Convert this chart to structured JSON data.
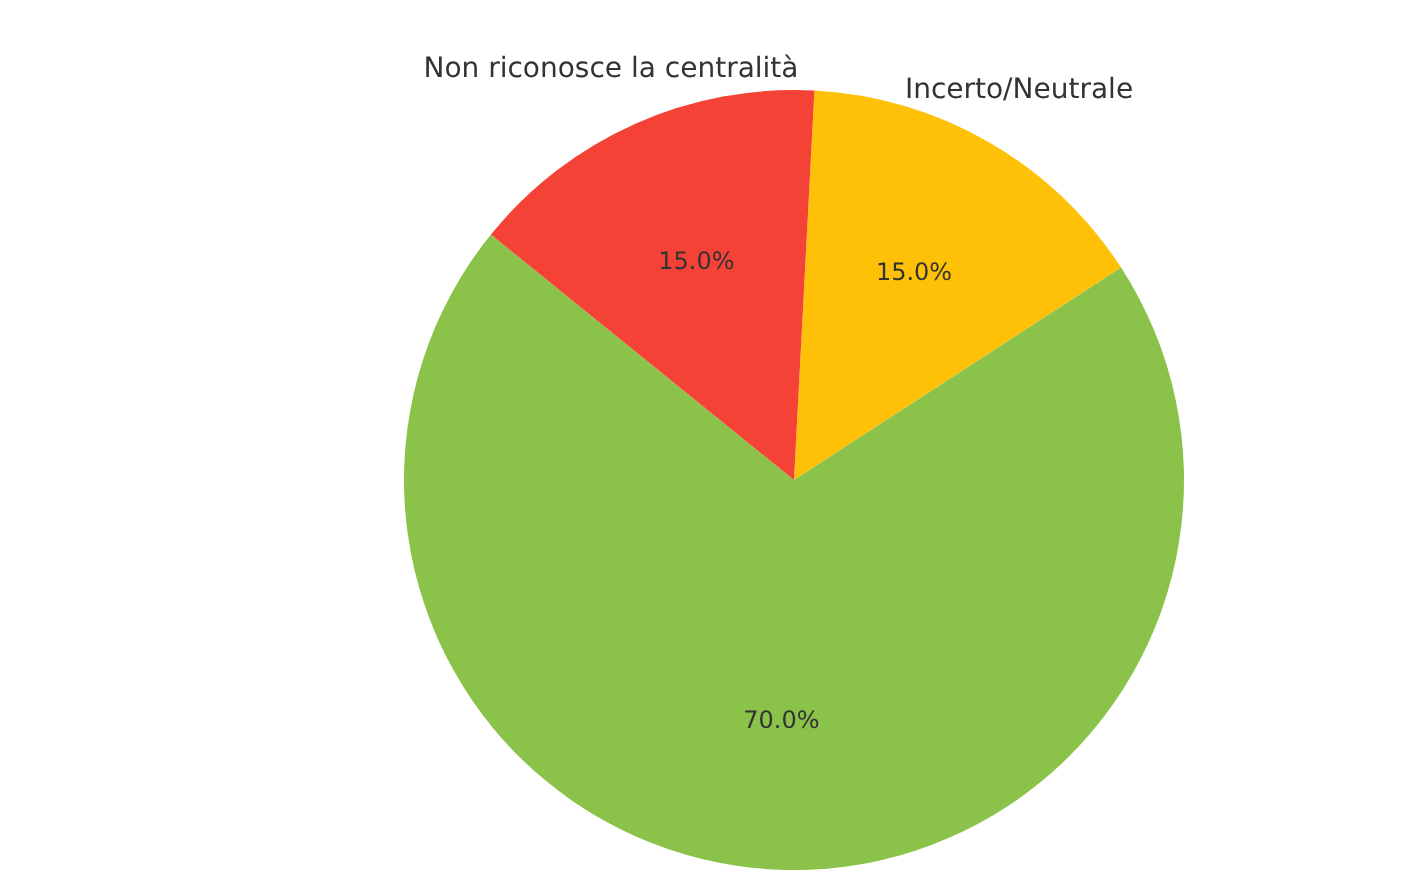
{
  "chart_data": {
    "type": "pie",
    "categories": [
      "Incerto/Neutrale",
      null,
      "Non riconosce la centralità"
    ],
    "values": [
      15,
      70,
      15
    ],
    "colors": [
      "#ffc107",
      "#8bc34a",
      "#f44336"
    ],
    "value_labels": [
      "15.0%",
      "70.0%",
      "15.0%"
    ]
  }
}
